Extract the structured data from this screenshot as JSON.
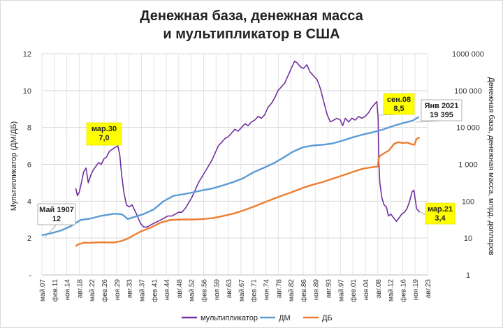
{
  "title": {
    "line1": "Денежная база, денежная масса",
    "line2": "и мультипликатор в США"
  },
  "chart_data": {
    "type": "line",
    "y_left_label": "Мультипликатор (ДМ/ДБ)",
    "y_right_label": "Денежная база, денежная масса, млрд. долларов",
    "y_left_ticks": [
      "-",
      "2",
      "4",
      "6",
      "8",
      "10",
      "12"
    ],
    "y_left_range": [
      0,
      12
    ],
    "y_right_ticks": [
      "1",
      "10",
      "100",
      "1 000",
      "10 000",
      "100 000",
      "1000 000"
    ],
    "y_right_range": [
      1,
      1000000
    ],
    "y_right_scale": "log",
    "grid": true,
    "legend_position": "bottom",
    "x_ticks": [
      "май.07",
      "фев.11",
      "ноя.14",
      "авг.18",
      "май.22",
      "фев.26",
      "ноя.29",
      "авг.33",
      "май.37",
      "фев.41",
      "ноя.44",
      "авг.48",
      "май.52",
      "фев.56",
      "ноя.59",
      "авг.63",
      "май.67",
      "фев.71",
      "ноя.74",
      "авг.78",
      "май.82",
      "фев.86",
      "ноя.89",
      "авг.93",
      "май.97",
      "фев.01",
      "ноя.04",
      "авг.08",
      "май.12",
      "фев.16",
      "ноя.19",
      "авг.23"
    ],
    "x_range": [
      1907.3,
      2023.6
    ],
    "series": [
      {
        "name": "мультипликатор",
        "axis": "left",
        "color": "#7030a0",
        "points": [
          [
            1917.5,
            4.7
          ],
          [
            1918,
            4.3
          ],
          [
            1918.6,
            4.5
          ],
          [
            1919.2,
            5.0
          ],
          [
            1919.9,
            5.6
          ],
          [
            1920.6,
            5.8
          ],
          [
            1921.3,
            5.0
          ],
          [
            1922,
            5.4
          ],
          [
            1922.8,
            5.7
          ],
          [
            1923.6,
            5.9
          ],
          [
            1924.4,
            6.1
          ],
          [
            1925.2,
            6.0
          ],
          [
            1926,
            6.3
          ],
          [
            1926.8,
            6.4
          ],
          [
            1927.6,
            6.7
          ],
          [
            1928.4,
            6.8
          ],
          [
            1929.2,
            6.9
          ],
          [
            1930.2,
            7.0
          ],
          [
            1930.8,
            6.5
          ],
          [
            1931.3,
            5.5
          ],
          [
            1932,
            4.5
          ],
          [
            1932.8,
            3.8
          ],
          [
            1933.6,
            3.7
          ],
          [
            1934.5,
            3.8
          ],
          [
            1935.3,
            3.5
          ],
          [
            1936.1,
            3.2
          ],
          [
            1937,
            2.8
          ],
          [
            1938,
            2.6
          ],
          [
            1939,
            2.6
          ],
          [
            1940,
            2.7
          ],
          [
            1941,
            2.8
          ],
          [
            1942.2,
            2.9
          ],
          [
            1943.3,
            3.0
          ],
          [
            1944.3,
            3.1
          ],
          [
            1945.3,
            3.2
          ],
          [
            1946.5,
            3.2
          ],
          [
            1947.5,
            3.3
          ],
          [
            1948.5,
            3.4
          ],
          [
            1949.5,
            3.4
          ],
          [
            1950.5,
            3.6
          ],
          [
            1951.5,
            3.9
          ],
          [
            1952.5,
            4.2
          ],
          [
            1953.5,
            4.6
          ],
          [
            1954.5,
            5.0
          ],
          [
            1955.5,
            5.3
          ],
          [
            1956.5,
            5.6
          ],
          [
            1957.5,
            5.9
          ],
          [
            1958.5,
            6.2
          ],
          [
            1959.5,
            6.6
          ],
          [
            1960.5,
            7.0
          ],
          [
            1961.5,
            7.2
          ],
          [
            1962.5,
            7.4
          ],
          [
            1963.5,
            7.5
          ],
          [
            1964.5,
            7.7
          ],
          [
            1965.5,
            7.9
          ],
          [
            1966.5,
            7.8
          ],
          [
            1967.5,
            8.0
          ],
          [
            1968.5,
            8.2
          ],
          [
            1969.5,
            8.1
          ],
          [
            1970.5,
            8.3
          ],
          [
            1971.5,
            8.4
          ],
          [
            1972.5,
            8.6
          ],
          [
            1973.5,
            8.5
          ],
          [
            1974.5,
            8.7
          ],
          [
            1975.5,
            9.1
          ],
          [
            1976.5,
            9.3
          ],
          [
            1977.5,
            9.6
          ],
          [
            1978.5,
            10.0
          ],
          [
            1979.5,
            10.2
          ],
          [
            1980.5,
            10.4
          ],
          [
            1981.5,
            10.8
          ],
          [
            1982.5,
            11.2
          ],
          [
            1983.5,
            11.6
          ],
          [
            1984.3,
            11.5
          ],
          [
            1985.2,
            11.3
          ],
          [
            1986.2,
            11.2
          ],
          [
            1987.2,
            11.4
          ],
          [
            1988.2,
            11.0
          ],
          [
            1989.2,
            10.8
          ],
          [
            1990.3,
            10.6
          ],
          [
            1991.3,
            10.1
          ],
          [
            1992.3,
            9.4
          ],
          [
            1993.3,
            8.7
          ],
          [
            1994.3,
            8.3
          ],
          [
            1995.3,
            8.4
          ],
          [
            1996.3,
            8.5
          ],
          [
            1997.3,
            8.4
          ],
          [
            1998,
            8.1
          ],
          [
            1998.8,
            8.5
          ],
          [
            1999.8,
            8.3
          ],
          [
            2000.8,
            8.5
          ],
          [
            2001.8,
            8.4
          ],
          [
            2002.8,
            8.6
          ],
          [
            2003.8,
            8.5
          ],
          [
            2004.8,
            8.6
          ],
          [
            2005.8,
            8.8
          ],
          [
            2006.8,
            9.1
          ],
          [
            2007.8,
            9.3
          ],
          [
            2008.3,
            9.4
          ],
          [
            2008.7,
            8.5
          ],
          [
            2008.9,
            6.2
          ],
          [
            2009.2,
            5.0
          ],
          [
            2009.8,
            4.2
          ],
          [
            2010.5,
            3.8
          ],
          [
            2011.2,
            3.7
          ],
          [
            2011.8,
            3.2
          ],
          [
            2012.5,
            3.3
          ],
          [
            2013.4,
            3.1
          ],
          [
            2014.2,
            2.9
          ],
          [
            2015,
            3.1
          ],
          [
            2015.8,
            3.3
          ],
          [
            2016.6,
            3.4
          ],
          [
            2017.4,
            3.6
          ],
          [
            2018.2,
            4.0
          ],
          [
            2018.9,
            4.5
          ],
          [
            2019.5,
            4.6
          ],
          [
            2019.9,
            4.1
          ],
          [
            2020.3,
            3.6
          ],
          [
            2021.2,
            3.4
          ]
        ]
      },
      {
        "name": "ДМ",
        "axis": "right",
        "color": "#5b9bd5",
        "points": [
          [
            1907.3,
            12
          ],
          [
            1910,
            13.5
          ],
          [
            1913,
            16
          ],
          [
            1916,
            21
          ],
          [
            1919,
            31
          ],
          [
            1922,
            34
          ],
          [
            1925,
            40
          ],
          [
            1929.2,
            46
          ],
          [
            1931.5,
            44
          ],
          [
            1933.2,
            33
          ],
          [
            1935,
            37
          ],
          [
            1938,
            45
          ],
          [
            1941,
            60
          ],
          [
            1944,
            100
          ],
          [
            1947,
            140
          ],
          [
            1950,
            155
          ],
          [
            1953,
            175
          ],
          [
            1956,
            200
          ],
          [
            1959,
            225
          ],
          [
            1962,
            270
          ],
          [
            1965,
            330
          ],
          [
            1968,
            420
          ],
          [
            1971,
            600
          ],
          [
            1974,
            790
          ],
          [
            1977,
            1050
          ],
          [
            1980,
            1500
          ],
          [
            1983,
            2200
          ],
          [
            1986,
            2900
          ],
          [
            1989,
            3250
          ],
          [
            1992,
            3400
          ],
          [
            1995,
            3700
          ],
          [
            1998,
            4400
          ],
          [
            2001,
            5400
          ],
          [
            2004,
            6400
          ],
          [
            2007,
            7400
          ],
          [
            2010,
            8700
          ],
          [
            2013,
            10800
          ],
          [
            2016,
            13000
          ],
          [
            2019,
            15200
          ],
          [
            2021,
            19395
          ]
        ]
      },
      {
        "name": "ДБ",
        "axis": "right",
        "color": "#ed7d31",
        "points": [
          [
            1917.5,
            6
          ],
          [
            1918.3,
            6.8
          ],
          [
            1920,
            7.5
          ],
          [
            1922,
            7.5
          ],
          [
            1925,
            7.7
          ],
          [
            1929,
            7.6
          ],
          [
            1931,
            8.2
          ],
          [
            1933,
            9.5
          ],
          [
            1935,
            12
          ],
          [
            1937,
            15
          ],
          [
            1940,
            19
          ],
          [
            1943,
            26
          ],
          [
            1946,
            31
          ],
          [
            1950,
            32
          ],
          [
            1953,
            32
          ],
          [
            1956,
            33
          ],
          [
            1959,
            35
          ],
          [
            1962,
            40
          ],
          [
            1965,
            46
          ],
          [
            1968,
            56
          ],
          [
            1971,
            70
          ],
          [
            1974,
            90
          ],
          [
            1977,
            115
          ],
          [
            1980,
            145
          ],
          [
            1983,
            180
          ],
          [
            1986,
            230
          ],
          [
            1989,
            280
          ],
          [
            1992,
            330
          ],
          [
            1995,
            410
          ],
          [
            1998,
            500
          ],
          [
            2001,
            620
          ],
          [
            2004,
            760
          ],
          [
            2007,
            840
          ],
          [
            2008.6,
            870
          ],
          [
            2008.9,
            1500
          ],
          [
            2009.3,
            1700
          ],
          [
            2010.5,
            2000
          ],
          [
            2012,
            2400
          ],
          [
            2013.5,
            3600
          ],
          [
            2014.8,
            4000
          ],
          [
            2016,
            3800
          ],
          [
            2017.5,
            3900
          ],
          [
            2018.8,
            3500
          ],
          [
            2019.7,
            3400
          ],
          [
            2020.2,
            4800
          ],
          [
            2021.2,
            5400
          ]
        ]
      }
    ],
    "annotations": [
      {
        "line1": "Май 1907",
        "line2": "12",
        "style": "white"
      },
      {
        "line1": "мар.30",
        "line2": "7,0",
        "style": "yellow"
      },
      {
        "line1": "сен.08",
        "line2": "8,5",
        "style": "yellow"
      },
      {
        "line1": "Янв 2021",
        "line2": "19 395",
        "style": "white"
      },
      {
        "line1": "мар.21",
        "line2": "3,4",
        "style": "yellow"
      }
    ],
    "legend": [
      "мультипликатор",
      "ДМ",
      "ДБ"
    ]
  }
}
